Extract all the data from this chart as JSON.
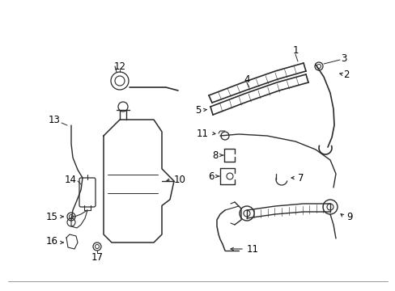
{
  "bg_color": "#ffffff",
  "line_color": "#2a2a2a",
  "fig_width": 4.89,
  "fig_height": 3.6,
  "dpi": 100,
  "font_size": 8.5
}
